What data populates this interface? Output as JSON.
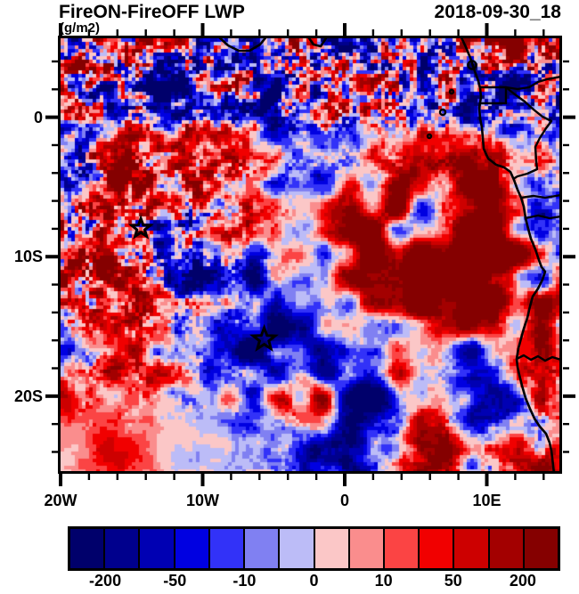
{
  "header": {
    "title": "FireON-FireOFF LWP",
    "units": "(g/m2)",
    "timestamp": "2018-09-30_18"
  },
  "chart_data": {
    "type": "heatmap",
    "title": "FireON-FireOFF LWP",
    "units": "g/m2",
    "timestamp": "2018-09-30_18",
    "description": "Pixelated red/blue liquid-water-path difference field (FireON minus FireOFF) over the southeast Atlantic and southwest Africa, with coastline and country borders and two star markers (Ascension and St Helena).",
    "x_axis": {
      "ticks": [
        {
          "label": "20W",
          "lon": -20
        },
        {
          "label": "10W",
          "lon": -10
        },
        {
          "label": "0",
          "lon": 0
        },
        {
          "label": "10E",
          "lon": 10
        }
      ],
      "minor_interval_deg": 2,
      "range_deg": [
        -20,
        15.1
      ]
    },
    "y_axis": {
      "ticks": [
        {
          "label": "0",
          "lat": 0
        },
        {
          "label": "10S",
          "lat": -10
        },
        {
          "label": "20S",
          "lat": -20
        }
      ],
      "minor_interval_deg": 2,
      "range_deg": [
        -25.4,
        5.66
      ]
    },
    "colorbar": {
      "levels": [
        -200,
        -100,
        -50,
        -20,
        -10,
        -5,
        0,
        5,
        10,
        20,
        50,
        100,
        200
      ],
      "tick_labels": [
        "-200",
        "-50",
        "-10",
        "0",
        "10",
        "50",
        "200"
      ],
      "palette": [
        "#00006b",
        "#00008d",
        "#0000b3",
        "#0000e1",
        "#3232f8",
        "#8080f2",
        "#bcbcf7",
        "#fbc7c7",
        "#fa8d8d",
        "#fb4444",
        "#f10000",
        "#cd0000",
        "#a30000",
        "#850000"
      ]
    },
    "markers": [
      {
        "name": "ascension-island-star",
        "lon": -14.35,
        "lat": -7.97
      },
      {
        "name": "st-helena-star",
        "lon": -5.67,
        "lat": -15.93
      }
    ]
  }
}
